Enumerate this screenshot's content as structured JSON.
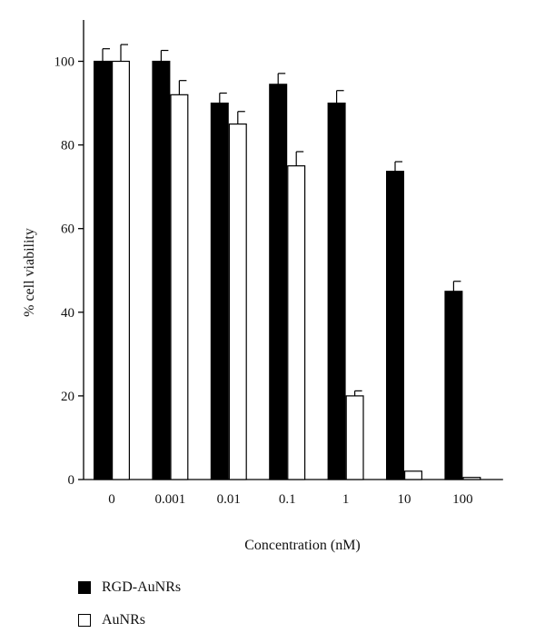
{
  "chart_data": {
    "type": "bar",
    "title": "",
    "xlabel": "Concentration (nM)",
    "ylabel": "% cell viability",
    "categories": [
      "0",
      "0.001",
      "0.01",
      "0.1",
      "1",
      "10",
      "100"
    ],
    "ylim": [
      0,
      110
    ],
    "yticks": [
      0,
      20,
      40,
      60,
      80,
      100
    ],
    "grid": false,
    "legend_position": "bottom-left",
    "series": [
      {
        "name": "RGD-AuNRs",
        "color": "#000000",
        "values": [
          100,
          100,
          90,
          94.5,
          90,
          73.7,
          45
        ],
        "errors": [
          3,
          2.6,
          2.4,
          2.6,
          3,
          2.3,
          2.4
        ]
      },
      {
        "name": "AuNRs",
        "color": "#ffffff",
        "values": [
          100,
          92,
          85,
          75,
          20,
          2,
          0.5
        ],
        "errors": [
          4,
          3.4,
          3,
          3.4,
          1.2,
          0,
          0
        ]
      }
    ]
  }
}
